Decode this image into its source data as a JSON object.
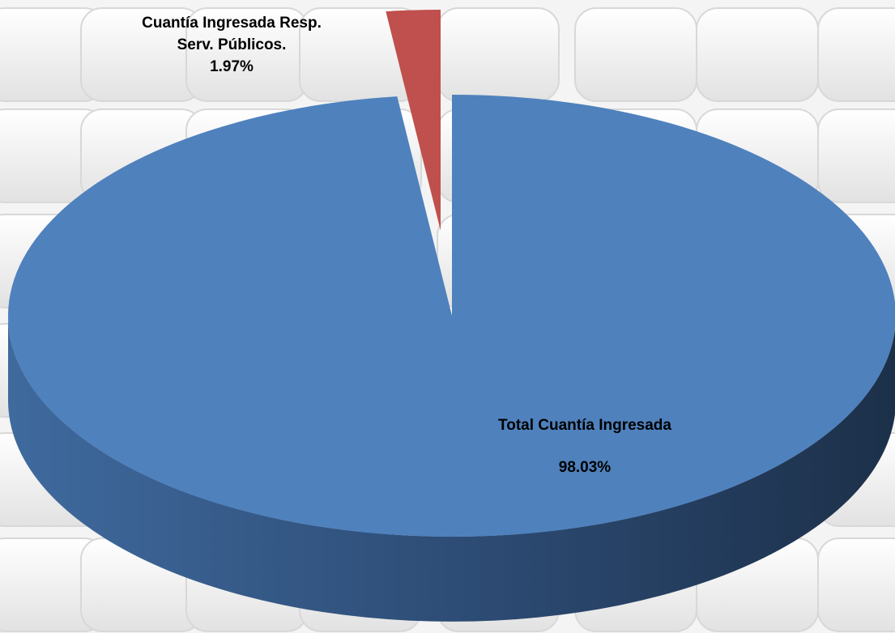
{
  "chart_data": {
    "type": "pie",
    "style": "3d-exploded",
    "slices": [
      {
        "label_lines": [
          "Cuantía Ingresada Resp.",
          "Serv. Públicos."
        ],
        "value_label": "1.97%",
        "value": 1.97,
        "color": "#c0504d",
        "dark_color": "#5a201f"
      },
      {
        "label_lines": [
          "Total Cuantía Ingresada"
        ],
        "value_label": "98.03%",
        "value": 98.03,
        "color": "#4f81bd",
        "dark_color": "#1f3552"
      }
    ]
  }
}
